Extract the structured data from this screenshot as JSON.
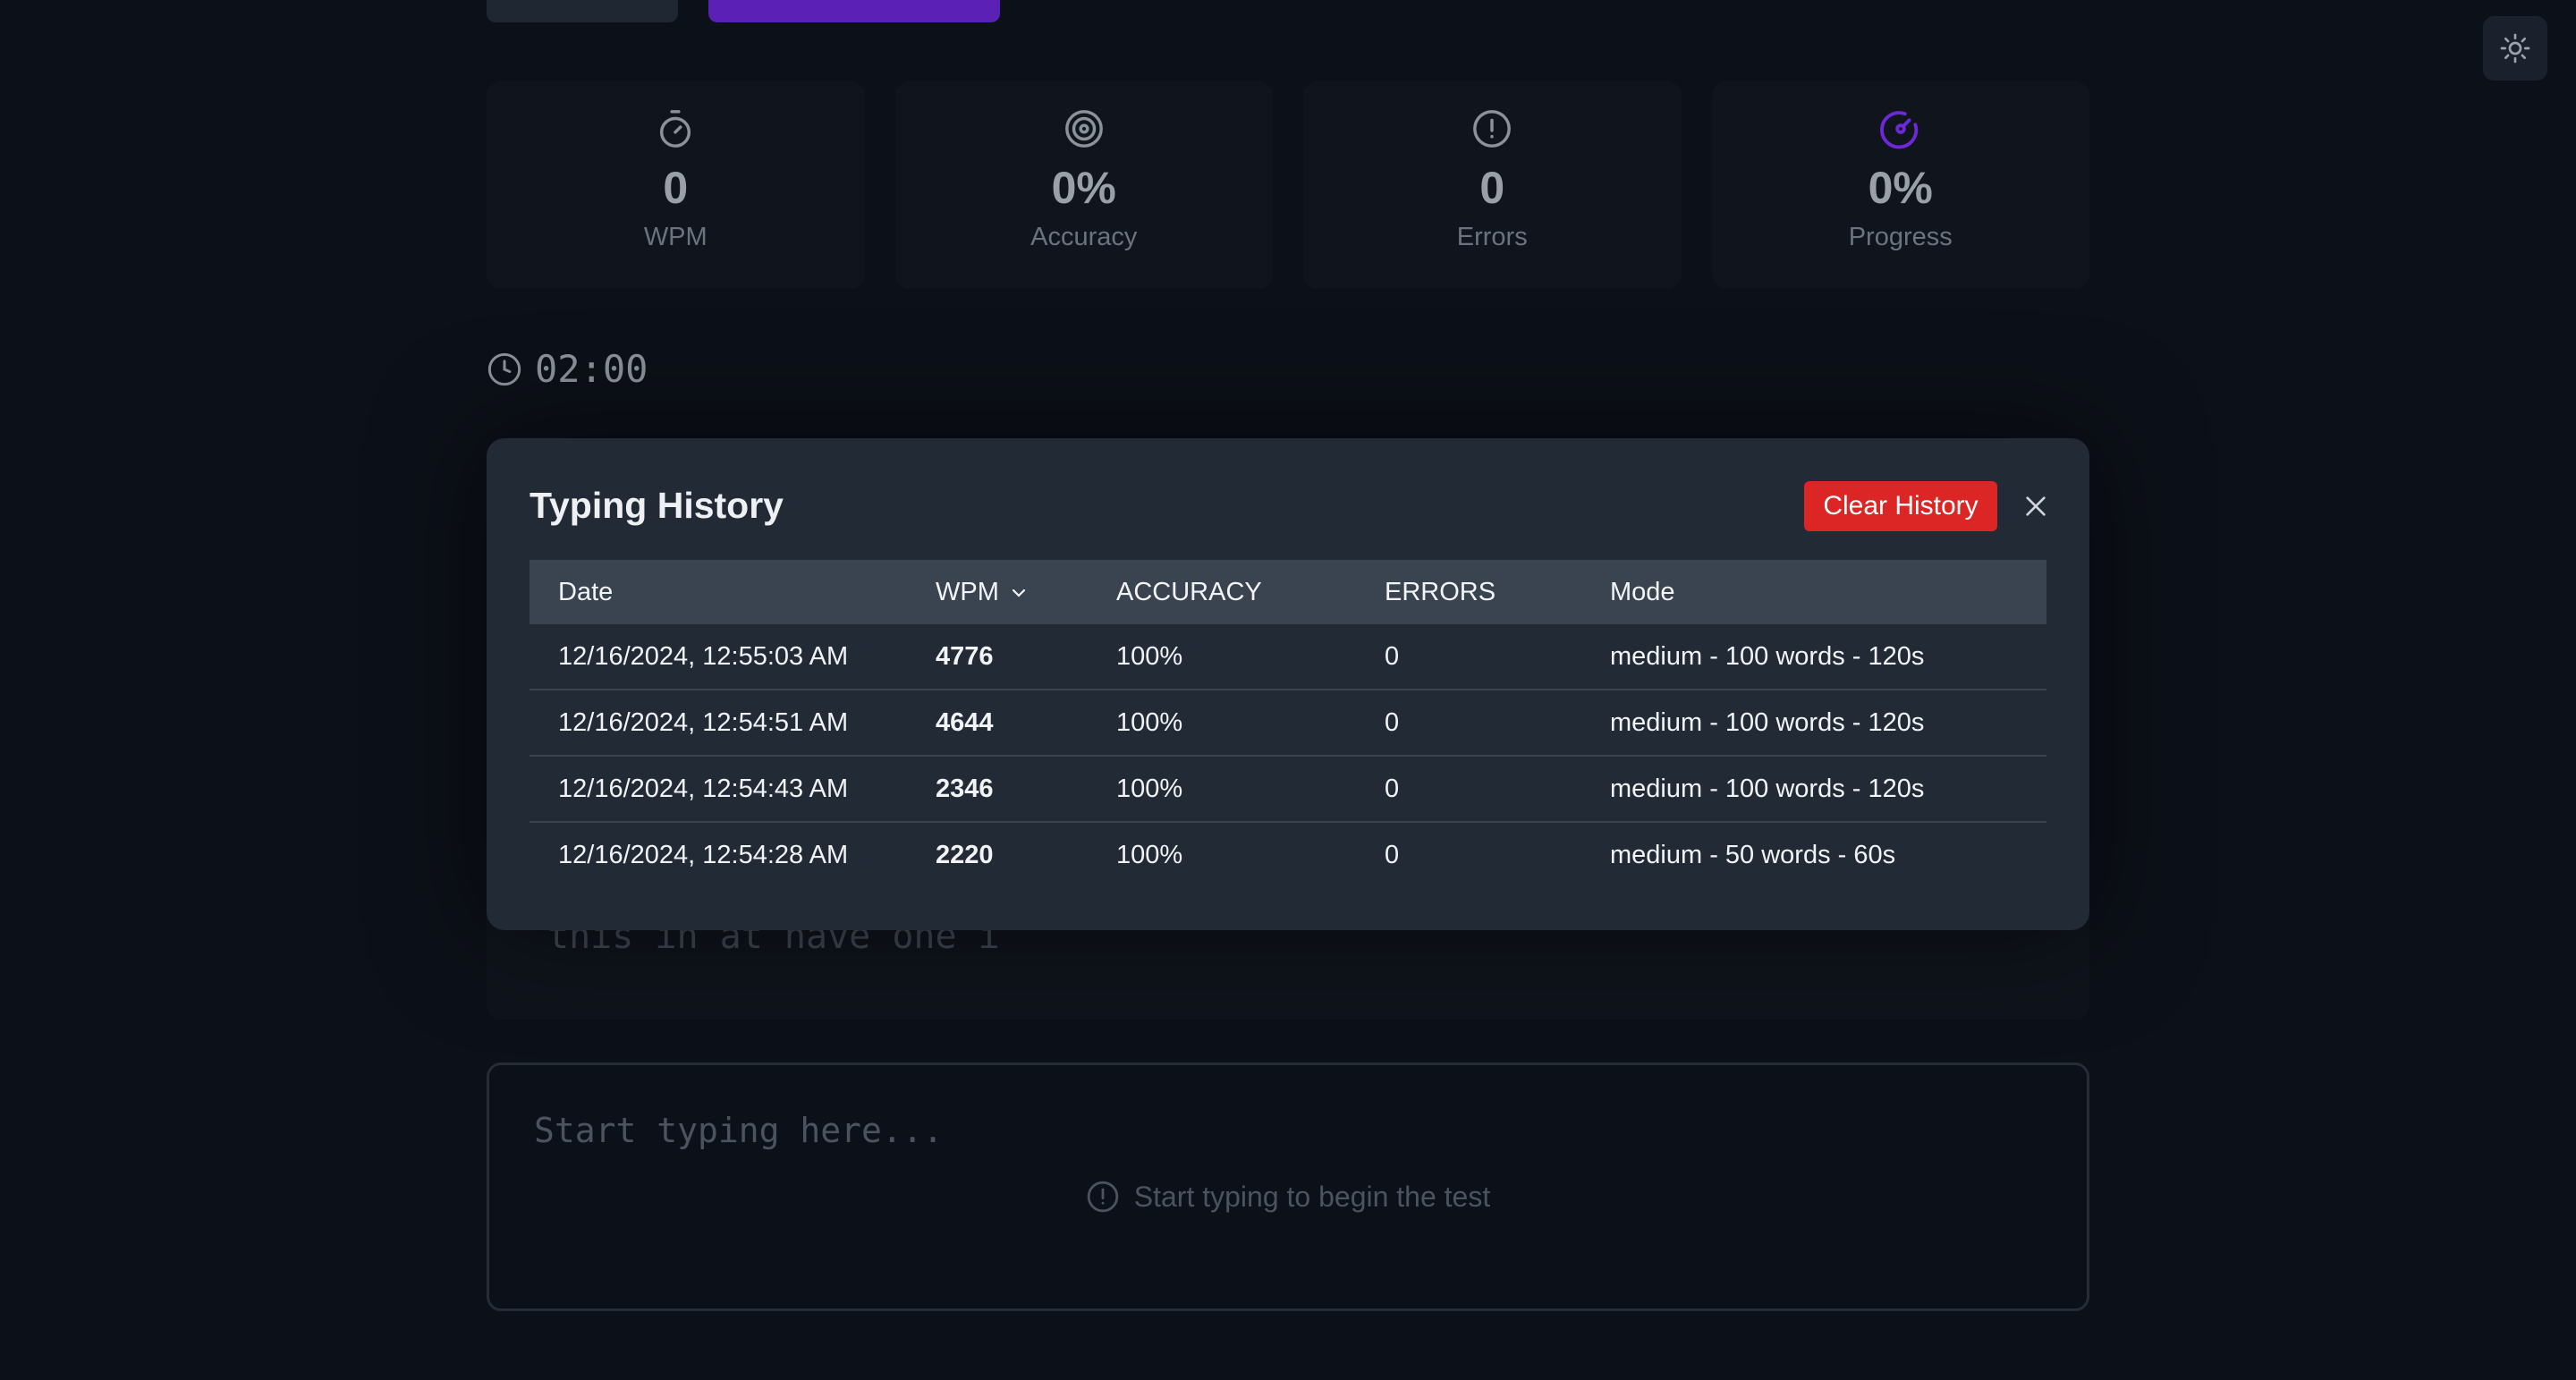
{
  "stats": [
    {
      "icon": "stopwatch-icon",
      "value": "0",
      "label": "WPM"
    },
    {
      "icon": "target-icon",
      "value": "0%",
      "label": "Accuracy"
    },
    {
      "icon": "alert-circle-icon",
      "value": "0",
      "label": "Errors"
    },
    {
      "icon": "gauge-icon",
      "value": "0%",
      "label": "Progress"
    }
  ],
  "timer": {
    "value": "02:00"
  },
  "text_panel": {
    "visible_text": "this in at have one i"
  },
  "input": {
    "placeholder": "Start typing here...",
    "hint": "Start typing to begin the test"
  },
  "modal": {
    "title": "Typing History",
    "clear_label": "Clear History",
    "columns": {
      "date": "Date",
      "wpm": "WPM",
      "accuracy": "ACCURACY",
      "errors": "ERRORS",
      "mode": "Mode"
    },
    "rows": [
      {
        "date": "12/16/2024, 12:55:03 AM",
        "wpm": "4776",
        "accuracy": "100%",
        "errors": "0",
        "mode": "medium - 100 words - 120s"
      },
      {
        "date": "12/16/2024, 12:54:51 AM",
        "wpm": "4644",
        "accuracy": "100%",
        "errors": "0",
        "mode": "medium - 100 words - 120s"
      },
      {
        "date": "12/16/2024, 12:54:43 AM",
        "wpm": "2346",
        "accuracy": "100%",
        "errors": "0",
        "mode": "medium - 100 words - 120s"
      },
      {
        "date": "12/16/2024, 12:54:28 AM",
        "wpm": "2220",
        "accuracy": "100%",
        "errors": "0",
        "mode": "medium - 50 words - 60s"
      }
    ]
  },
  "colors": {
    "background": "#0c1018",
    "accent": "#6d28d9",
    "danger": "#dc2626",
    "modal": "#222a36"
  }
}
